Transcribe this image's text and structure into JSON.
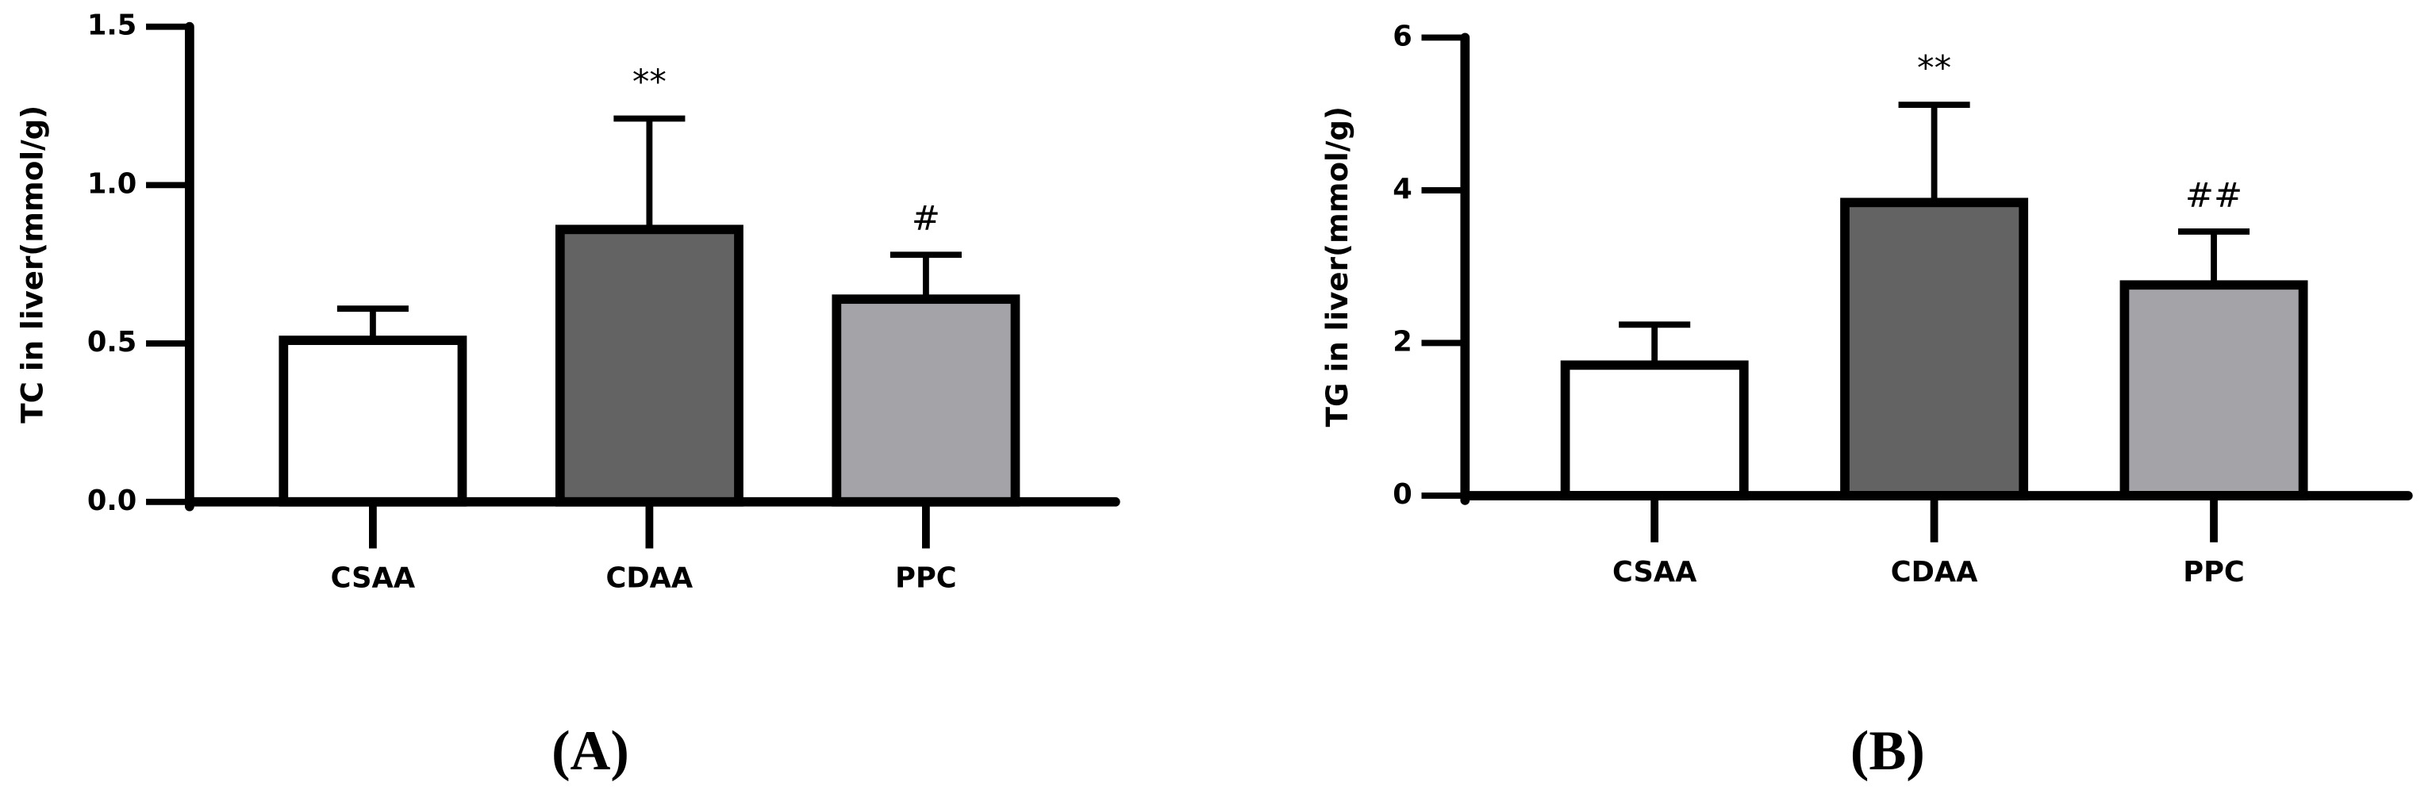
{
  "chart_data": [
    {
      "type": "bar",
      "panel_label": "(A)",
      "ylabel": "TC in liver(mmol/g)",
      "categories": [
        "CSAA",
        "CDAA",
        "PPC"
      ],
      "values": [
        0.51,
        0.86,
        0.64
      ],
      "errors": [
        0.1,
        0.35,
        0.14
      ],
      "annotations": [
        null,
        "**",
        "#"
      ],
      "colors": [
        "#ffffff",
        "#636363",
        "#a4a3a8"
      ],
      "ylim": [
        0,
        1.5
      ],
      "yticks": [
        {
          "value": 0,
          "label": "0.0"
        },
        0.5,
        {
          "value": 1,
          "label": "1.0"
        },
        1.5
      ]
    },
    {
      "type": "bar",
      "panel_label": "(B)",
      "ylabel": "TG in liver(mmol/g)",
      "categories": [
        "CSAA",
        "CDAA",
        "PPC"
      ],
      "values": [
        1.71,
        3.84,
        2.76
      ],
      "errors": [
        0.53,
        1.28,
        0.7
      ],
      "annotations": [
        null,
        "**",
        "##"
      ],
      "colors": [
        "#ffffff",
        "#636363",
        "#a4a3a8"
      ],
      "ylim": [
        0,
        6
      ],
      "yticks": [
        0,
        2,
        4,
        6
      ]
    }
  ]
}
